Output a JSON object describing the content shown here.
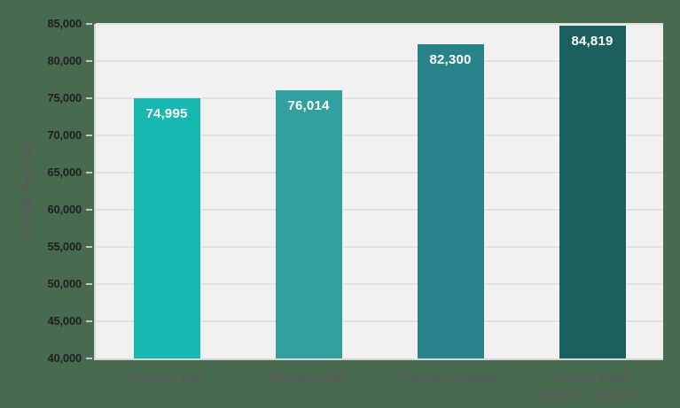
{
  "colors": {
    "page_background": "#486b50",
    "plot_background": "#f1f1f2",
    "gridline": "#e2e2e2",
    "axis_line": "#d6d6d6",
    "tick_mark": "#c4c4c4",
    "tick_label": "#1f1f1f",
    "category_label": "#5a5a5a",
    "axis_title": "#5a5a5a",
    "value_label": "#ffffff"
  },
  "chart_data": {
    "type": "bar",
    "title": "",
    "xlabel": "",
    "ylabel": "1A CRB Records",
    "categories": [
      "Previous Year",
      "Previous Half",
      "Previous Quarter",
      "Current Week"
    ],
    "category_sublabels": [
      "",
      "",
      "",
      "(Sept 21 - Sept 27)"
    ],
    "values": [
      74995,
      76014,
      82300,
      84819
    ],
    "value_labels": [
      "74,995",
      "76,014",
      "82,300",
      "84,819"
    ],
    "bar_colors": [
      "#17b8b1",
      "#33a0a0",
      "#28828a",
      "#1b5f5e"
    ],
    "ylim": [
      40000,
      85000
    ],
    "ytick_values": [
      40000,
      45000,
      50000,
      55000,
      60000,
      65000,
      70000,
      75000,
      80000,
      85000
    ],
    "ytick_labels": [
      "40,000",
      "45,000",
      "50,000",
      "55,000",
      "60,000",
      "65,000",
      "70,000",
      "75,000",
      "80,000",
      "85,000"
    ],
    "grid": true,
    "legend": "none"
  }
}
